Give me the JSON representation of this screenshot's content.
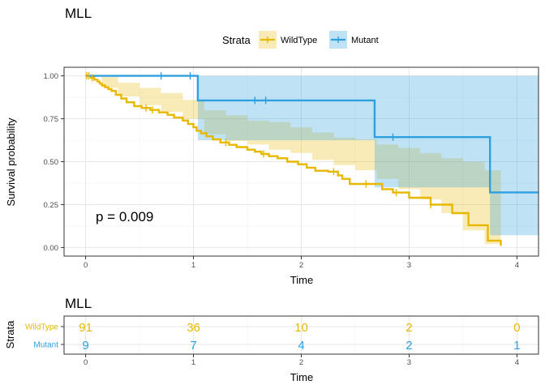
{
  "chart_data": [
    {
      "type": "line",
      "subtype": "kaplan-meier",
      "title": "MLL",
      "xlabel": "Time",
      "ylabel": "Survival probability",
      "xlim": [
        -0.2,
        4.2
      ],
      "ylim": [
        -0.05,
        1.05
      ],
      "xticks": [
        0,
        1,
        2,
        3,
        4
      ],
      "yticks": [
        0.0,
        0.25,
        0.5,
        0.75,
        1.0
      ],
      "ytick_labels": [
        "0.00",
        "0.25",
        "0.50",
        "0.75",
        "1.00"
      ],
      "legend": {
        "title": "Strata",
        "position": "top"
      },
      "annotation": "p = 0.009",
      "series": [
        {
          "name": "WildType",
          "color": "#E7B800",
          "fill": "rgba(231,184,0,0.28)",
          "steps": [
            [
              0,
              1.0
            ],
            [
              0.05,
              0.989
            ],
            [
              0.08,
              0.978
            ],
            [
              0.11,
              0.967
            ],
            [
              0.13,
              0.956
            ],
            [
              0.15,
              0.945
            ],
            [
              0.18,
              0.934
            ],
            [
              0.21,
              0.923
            ],
            [
              0.24,
              0.912
            ],
            [
              0.28,
              0.89
            ],
            [
              0.33,
              0.868
            ],
            [
              0.38,
              0.846
            ],
            [
              0.45,
              0.824
            ],
            [
              0.52,
              0.813
            ],
            [
              0.6,
              0.801
            ],
            [
              0.68,
              0.787
            ],
            [
              0.76,
              0.773
            ],
            [
              0.82,
              0.757
            ],
            [
              0.9,
              0.74
            ],
            [
              0.95,
              0.72
            ],
            [
              1.0,
              0.7
            ],
            [
              1.03,
              0.68
            ],
            [
              1.07,
              0.665
            ],
            [
              1.12,
              0.648
            ],
            [
              1.18,
              0.63
            ],
            [
              1.25,
              0.612
            ],
            [
              1.33,
              0.598
            ],
            [
              1.4,
              0.585
            ],
            [
              1.5,
              0.57
            ],
            [
              1.57,
              0.558
            ],
            [
              1.63,
              0.545
            ],
            [
              1.7,
              0.532
            ],
            [
              1.78,
              0.52
            ],
            [
              1.87,
              0.5
            ],
            [
              1.97,
              0.485
            ],
            [
              2.05,
              0.465
            ],
            [
              2.13,
              0.447
            ],
            [
              2.25,
              0.442
            ],
            [
              2.34,
              0.42
            ],
            [
              2.38,
              0.4
            ],
            [
              2.45,
              0.37
            ],
            [
              2.75,
              0.34
            ],
            [
              2.85,
              0.32
            ],
            [
              3.0,
              0.29
            ],
            [
              3.2,
              0.25
            ],
            [
              3.4,
              0.2
            ],
            [
              3.55,
              0.13
            ],
            [
              3.73,
              0.04
            ],
            [
              3.85,
              0.01
            ]
          ],
          "ci_upper": [
            [
              0,
              1.0
            ],
            [
              0.15,
              0.995
            ],
            [
              0.3,
              0.96
            ],
            [
              0.5,
              0.93
            ],
            [
              0.7,
              0.9
            ],
            [
              0.9,
              0.86
            ],
            [
              1.1,
              0.8
            ],
            [
              1.3,
              0.77
            ],
            [
              1.5,
              0.74
            ],
            [
              1.7,
              0.73
            ],
            [
              1.9,
              0.7
            ],
            [
              2.1,
              0.67
            ],
            [
              2.3,
              0.64
            ],
            [
              2.5,
              0.63
            ],
            [
              2.7,
              0.6
            ],
            [
              2.9,
              0.58
            ],
            [
              3.1,
              0.55
            ],
            [
              3.3,
              0.52
            ],
            [
              3.5,
              0.5
            ],
            [
              3.7,
              0.45
            ],
            [
              3.85,
              0.4
            ]
          ],
          "ci_lower": [
            [
              0,
              1.0
            ],
            [
              0.15,
              0.93
            ],
            [
              0.3,
              0.88
            ],
            [
              0.5,
              0.83
            ],
            [
              0.7,
              0.79
            ],
            [
              0.9,
              0.75
            ],
            [
              1.1,
              0.66
            ],
            [
              1.3,
              0.62
            ],
            [
              1.5,
              0.6
            ],
            [
              1.7,
              0.57
            ],
            [
              1.9,
              0.55
            ],
            [
              2.1,
              0.51
            ],
            [
              2.3,
              0.48
            ],
            [
              2.5,
              0.45
            ],
            [
              2.7,
              0.4
            ],
            [
              2.9,
              0.34
            ],
            [
              3.1,
              0.28
            ],
            [
              3.3,
              0.2
            ],
            [
              3.5,
              0.1
            ],
            [
              3.7,
              0.02
            ],
            [
              3.85,
              0.0
            ]
          ],
          "censor_times": [
            0.01,
            0.03,
            0.06,
            0.56,
            0.62,
            1.3,
            1.65,
            2.3,
            2.6,
            2.88,
            3.2
          ]
        },
        {
          "name": "Mutant",
          "color": "#2E9FDF",
          "fill": "rgba(46,159,223,0.3)",
          "steps": [
            [
              0,
              1.0
            ],
            [
              1.04,
              0.857
            ],
            [
              2.68,
              0.643
            ],
            [
              3.75,
              0.321
            ]
          ],
          "ci_upper": [
            [
              0,
              1.0
            ],
            [
              4.2,
              1.0
            ]
          ],
          "ci_lower": [
            [
              0,
              1.0
            ],
            [
              1.04,
              0.625
            ],
            [
              2.68,
              0.35
            ],
            [
              3.75,
              0.072
            ],
            [
              4.2,
              0.072
            ]
          ],
          "censor_times": [
            0.7,
            0.97,
            1.57,
            1.67,
            2.85
          ]
        }
      ]
    },
    {
      "type": "table",
      "title": "MLL",
      "xlabel": "Time",
      "ylabel": "Strata",
      "xticks": [
        0,
        1,
        2,
        3,
        4
      ],
      "rows": [
        {
          "name": "WildType",
          "color": "#E7B800",
          "counts": [
            "91",
            "36",
            "10",
            "2",
            "0"
          ]
        },
        {
          "name": "Mutant",
          "color": "#2E9FDF",
          "counts": [
            "9",
            "7",
            "4",
            "2",
            "1"
          ]
        }
      ]
    }
  ]
}
